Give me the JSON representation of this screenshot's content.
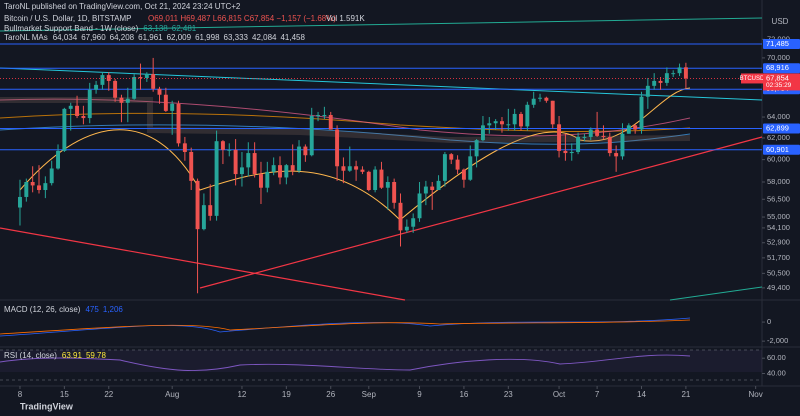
{
  "header": {
    "author_line": "TaroNL published on TradingView.com, Oct 21, 2024 23:24 UTC+2",
    "symbol": "Bitcoin / U.S. Dollar, 1D, BITSTAMP",
    "ohlc": "O69,011 H69,487 L66,815 C67,854 −1,157 (−1.68%)",
    "volume": "Vol 1.591K",
    "currency": "USD",
    "logo": "TradingView"
  },
  "indicators": {
    "band": {
      "title": "Bullmarket Support Band - 1W (close)",
      "values": [
        "63,138",
        "62,481"
      ]
    },
    "mas": {
      "title": "TaroNL MAs",
      "values": [
        "64,034",
        "67,960",
        "64,208",
        "61,961",
        "62,009",
        "61,998",
        "63,333",
        "42,084",
        "41,458"
      ]
    },
    "macd": {
      "title": "MACD (12, 26, close)",
      "values": [
        "475",
        "1,206"
      ],
      "ylim": [
        -2300,
        2000
      ],
      "yticks": [
        0,
        {
          "value": -2000,
          "label": "-2,000"
        }
      ]
    },
    "rsi": {
      "title": "RSI (14, close)",
      "values": [
        "63.91",
        "59.78"
      ],
      "ylim": [
        25,
        70.7
      ],
      "yticks": [
        {
          "value": 60,
          "label": "60.00"
        },
        {
          "value": 40,
          "label": "40.00"
        }
      ]
    }
  },
  "chart_data": {
    "type": "candlestick",
    "log_scale": true,
    "up_color": "#26a69a",
    "down_color": "#ef5350",
    "xlim": [
      -3.15,
      117
    ],
    "ylim": [
      48650,
      75500
    ],
    "xticks": [
      {
        "value": 0,
        "label": "8"
      },
      {
        "value": 7,
        "label": "15"
      },
      {
        "value": 14,
        "label": "22"
      },
      {
        "value": 24,
        "label": "Aug"
      },
      {
        "value": 35,
        "label": "12"
      },
      {
        "value": 42,
        "label": "19"
      },
      {
        "value": 49,
        "label": "26"
      },
      {
        "value": 55,
        "label": "Sep"
      },
      {
        "value": 63,
        "label": "9"
      },
      {
        "value": 70,
        "label": "16"
      },
      {
        "value": 77,
        "label": "23"
      },
      {
        "value": 85,
        "label": "Oct"
      },
      {
        "value": 91,
        "label": "7"
      },
      {
        "value": 98,
        "label": "14"
      },
      {
        "value": 105,
        "label": "21"
      },
      {
        "value": 116,
        "label": "Nov"
      }
    ],
    "yticks": [
      {
        "value": 72000,
        "label": "72,000"
      },
      {
        "value": 70000,
        "label": "70,000"
      },
      {
        "value": 64000,
        "label": "64,000"
      },
      {
        "value": 62000,
        "label": "62,000"
      },
      {
        "value": 60000,
        "label": "60,000"
      },
      {
        "value": 58000,
        "label": "58,000"
      },
      {
        "value": 56500,
        "label": "56,500"
      },
      {
        "value": 55000,
        "label": "55,000"
      },
      {
        "value": 54100,
        "label": "54,100"
      },
      {
        "value": 52900,
        "label": "52,900"
      },
      {
        "value": 51700,
        "label": "51,700"
      },
      {
        "value": 50500,
        "label": "50,500"
      },
      {
        "value": 49400,
        "label": "49,400"
      }
    ],
    "levels": [
      {
        "value": 71485,
        "label": "71,485",
        "color": "#2962ff"
      },
      {
        "value": 68916,
        "label": "68,916",
        "color": "#2962ff"
      },
      {
        "value": 66754,
        "label": "66,754",
        "color": "#2962ff"
      },
      {
        "value": 62899,
        "label": "62,899",
        "color": "#2962ff"
      },
      {
        "value": 60901,
        "label": "60,901",
        "color": "#2962ff"
      }
    ],
    "last_price": {
      "name": "BTCUSD",
      "value": 67854,
      "label": "67,854",
      "countdown": "02:35:29",
      "color": "#f23645"
    },
    "open": [
      55800,
      56700,
      58000,
      57700,
      57300,
      57900,
      59200,
      60800,
      64800,
      65100,
      64100,
      63900,
      66700,
      67200,
      68200,
      67600,
      65900,
      65400,
      65800,
      68000,
      67900,
      68300,
      66800,
      66200,
      64600,
      65300,
      61500,
      60700,
      58100,
      54000,
      56000,
      55100,
      61700,
      60900,
      60900,
      58700,
      59300,
      60600,
      58700,
      57500,
      58900,
      59500,
      58400,
      59500,
      59000,
      61200,
      60400,
      64100,
      64200,
      64200,
      62800,
      59400,
      59000,
      59400,
      59100,
      58900,
      57300,
      59100,
      57500,
      58000,
      56200,
      53900,
      54200,
      54900,
      57000,
      57600,
      57300,
      58100,
      60500,
      60000,
      59100,
      58200,
      60300,
      61800,
      63200,
      63400,
      63600,
      63300,
      63300,
      64300,
      63100,
      65200,
      65800,
      65900,
      65600,
      63300,
      60800,
      60600,
      60700,
      62100,
      62100,
      62800,
      62200,
      62100,
      60600,
      60300,
      62400,
      63200,
      62800,
      66000,
      67100,
      67600,
      67400,
      68400,
      68400,
      69011
    ],
    "high": [
      58200,
      58300,
      59400,
      59500,
      58500,
      59900,
      61400,
      64900,
      65400,
      66100,
      65100,
      67400,
      67600,
      68500,
      68500,
      67800,
      66200,
      66900,
      68300,
      69400,
      68500,
      70000,
      67000,
      66900,
      65600,
      65600,
      62100,
      61100,
      58300,
      57000,
      57800,
      62700,
      61800,
      61500,
      61900,
      60700,
      61600,
      61600,
      59800,
      59800,
      60200,
      60300,
      59600,
      61400,
      61800,
      61400,
      64900,
      64500,
      65000,
      64500,
      63200,
      60200,
      61200,
      59900,
      59400,
      59000,
      59400,
      59800,
      58500,
      58300,
      57000,
      54800,
      55300,
      58000,
      58100,
      58000,
      58600,
      60700,
      60600,
      60400,
      59200,
      61300,
      61900,
      64100,
      64000,
      63800,
      64000,
      64800,
      64800,
      64500,
      65500,
      66500,
      66300,
      66000,
      65600,
      64100,
      62400,
      61500,
      62500,
      62400,
      63000,
      64500,
      63200,
      62500,
      61300,
      63400,
      63400,
      63300,
      66500,
      67900,
      68400,
      68000,
      69000,
      68700,
      69400,
      69487
    ],
    "low": [
      54300,
      56300,
      57100,
      57000,
      56600,
      57700,
      59100,
      60700,
      62700,
      63900,
      63300,
      63400,
      66300,
      66700,
      66600,
      65500,
      63500,
      63500,
      65700,
      66700,
      67500,
      66500,
      65300,
      64500,
      62300,
      61200,
      59900,
      57300,
      49000,
      53900,
      54700,
      54700,
      59600,
      60300,
      57700,
      57600,
      58500,
      58400,
      56100,
      57100,
      58600,
      57800,
      57800,
      58600,
      58800,
      59800,
      60300,
      63600,
      63800,
      62800,
      58100,
      57900,
      58900,
      58100,
      58700,
      57200,
      57100,
      57400,
      55600,
      55700,
      52600,
      53700,
      53700,
      54600,
      56000,
      55600,
      57300,
      57600,
      59600,
      58700,
      57500,
      58100,
      59300,
      61700,
      62400,
      62800,
      62500,
      62700,
      62700,
      62700,
      62700,
      64900,
      65500,
      65400,
      62900,
      60200,
      59900,
      59900,
      60500,
      61700,
      61800,
      62100,
      61900,
      60300,
      58900,
      60000,
      62400,
      62400,
      62400,
      64800,
      66700,
      66700,
      67100,
      68000,
      68100,
      66815
    ],
    "close": [
      56700,
      58000,
      57700,
      57300,
      57900,
      59200,
      60800,
      64800,
      65100,
      64100,
      63900,
      66700,
      67200,
      68200,
      67600,
      65900,
      65400,
      65800,
      68000,
      67900,
      68300,
      66800,
      66200,
      64600,
      65300,
      61500,
      60700,
      58100,
      54000,
      56000,
      55100,
      61700,
      60900,
      60900,
      58700,
      59300,
      60600,
      58700,
      57500,
      58900,
      59500,
      58400,
      59500,
      59000,
      61200,
      60400,
      64100,
      64200,
      64200,
      62800,
      59400,
      59000,
      59400,
      59100,
      58900,
      57300,
      59100,
      57500,
      58000,
      56200,
      53900,
      54200,
      54900,
      57000,
      57600,
      57300,
      58100,
      60500,
      60000,
      59100,
      58200,
      60300,
      61800,
      63200,
      63400,
      63600,
      63300,
      63300,
      64300,
      63100,
      65200,
      65800,
      65900,
      65600,
      63300,
      60800,
      60600,
      60700,
      62100,
      62100,
      62800,
      62200,
      62100,
      60600,
      60300,
      62400,
      63200,
      62800,
      66000,
      67100,
      67600,
      67400,
      68400,
      68400,
      69000,
      67854
    ]
  }
}
